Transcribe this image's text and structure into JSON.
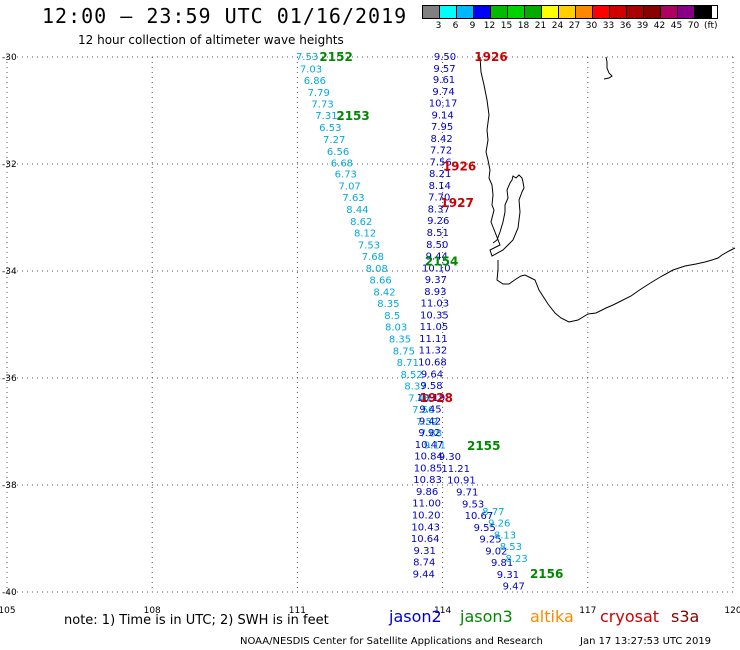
{
  "title": "12:00 – 23:59 UTC 01/16/2019",
  "subtitle": "12 hour collection of altimeter wave heights",
  "legend": {
    "colors": [
      "#808080",
      "#00ffff",
      "#00b8ff",
      "#0000ff",
      "#00bb00",
      "#00d400",
      "#00aa00",
      "#ffff00",
      "#ffd000",
      "#ff8800",
      "#ff0000",
      "#d00000",
      "#aa0000",
      "#880000",
      "#b00060",
      "#880088",
      "#000000"
    ],
    "labels": [
      "3",
      "6",
      "9",
      "12",
      "15",
      "18",
      "21",
      "24",
      "27",
      "30",
      "33",
      "36",
      "39",
      "42",
      "45",
      "70"
    ],
    "unit": "(ft)"
  },
  "map": {
    "lon_ticks": [
      "105",
      "108",
      "111",
      "114",
      "117",
      "120"
    ],
    "lat_ticks": [
      "-30",
      "-32",
      "-34",
      "-36",
      "-38",
      "-40"
    ]
  },
  "tracks": {
    "jason3_2152": {
      "color": "#00aadd",
      "points": [
        {
          "lat": -30.0,
          "lon": 111.2,
          "v": "7.53"
        },
        {
          "lat": -30.23,
          "lon": 111.28,
          "v": "7.03"
        },
        {
          "lat": -30.45,
          "lon": 111.36,
          "v": "6.86"
        },
        {
          "lat": -30.67,
          "lon": 111.44,
          "v": "7.79"
        },
        {
          "lat": -30.89,
          "lon": 111.52,
          "v": "7.73"
        },
        {
          "lat": -31.1,
          "lon": 111.6,
          "v": "7.31"
        },
        {
          "lat": -31.33,
          "lon": 111.68,
          "v": "6.53"
        },
        {
          "lat": -31.55,
          "lon": 111.76,
          "v": "7.27"
        },
        {
          "lat": -31.78,
          "lon": 111.84,
          "v": "6.56"
        },
        {
          "lat": -31.99,
          "lon": 111.92,
          "v": "6.68"
        },
        {
          "lat": -32.2,
          "lon": 112.0,
          "v": "6.73"
        },
        {
          "lat": -32.42,
          "lon": 112.08,
          "v": "7.07"
        },
        {
          "lat": -32.64,
          "lon": 112.16,
          "v": "7.63"
        },
        {
          "lat": -32.86,
          "lon": 112.24,
          "v": "8.44"
        },
        {
          "lat": -33.08,
          "lon": 112.32,
          "v": "8.62"
        },
        {
          "lat": -33.3,
          "lon": 112.4,
          "v": "8.12"
        },
        {
          "lat": -33.52,
          "lon": 112.48,
          "v": "7.53"
        },
        {
          "lat": -33.74,
          "lon": 112.56,
          "v": "7.68"
        },
        {
          "lat": -33.96,
          "lon": 112.64,
          "v": "8.08"
        },
        {
          "lat": -34.18,
          "lon": 112.72,
          "v": "8.66"
        },
        {
          "lat": -34.4,
          "lon": 112.8,
          "v": "8.42"
        },
        {
          "lat": -34.62,
          "lon": 112.88,
          "v": "8.35"
        },
        {
          "lat": -34.84,
          "lon": 112.96,
          "v": "8.5"
        },
        {
          "lat": -35.06,
          "lon": 113.04,
          "v": "8.03"
        },
        {
          "lat": -35.28,
          "lon": 113.12,
          "v": "8.35"
        },
        {
          "lat": -35.5,
          "lon": 113.2,
          "v": "8.75"
        },
        {
          "lat": -35.72,
          "lon": 113.28,
          "v": "8.71"
        },
        {
          "lat": -35.94,
          "lon": 113.36,
          "v": "8.52"
        },
        {
          "lat": -36.16,
          "lon": 113.44,
          "v": "8.37"
        },
        {
          "lat": -36.38,
          "lon": 113.52,
          "v": "7.46"
        },
        {
          "lat": -36.6,
          "lon": 113.6,
          "v": "7.56"
        },
        {
          "lat": -36.82,
          "lon": 113.68,
          "v": "7.52"
        },
        {
          "lat": -37.04,
          "lon": 113.76,
          "v": "7.88"
        },
        {
          "lat": -37.26,
          "lon": 113.84,
          "v": "9.11"
        }
      ]
    },
    "jason2_1926": {
      "color": "#0000cc",
      "points": [
        {
          "lat": -30.0,
          "lon": 114.05,
          "v": "9.50"
        },
        {
          "lat": -30.22,
          "lon": 114.04,
          "v": "9.57"
        },
        {
          "lat": -30.43,
          "lon": 114.03,
          "v": "9.61"
        },
        {
          "lat": -30.65,
          "lon": 114.02,
          "v": "9.74"
        },
        {
          "lat": -30.87,
          "lon": 114.01,
          "v": "10.17"
        },
        {
          "lat": -31.09,
          "lon": 114.0,
          "v": "9.14"
        },
        {
          "lat": -31.31,
          "lon": 113.99,
          "v": "7.95"
        },
        {
          "lat": -31.53,
          "lon": 113.98,
          "v": "8.42"
        },
        {
          "lat": -31.75,
          "lon": 113.97,
          "v": "7.72"
        },
        {
          "lat": -31.97,
          "lon": 113.96,
          "v": "7.56"
        },
        {
          "lat": -32.19,
          "lon": 113.95,
          "v": "8.21"
        },
        {
          "lat": -32.41,
          "lon": 113.94,
          "v": "8.14"
        },
        {
          "lat": -32.63,
          "lon": 113.93,
          "v": "7.70"
        },
        {
          "lat": -32.85,
          "lon": 113.92,
          "v": "8.37"
        },
        {
          "lat": -33.07,
          "lon": 113.91,
          "v": "9.26"
        },
        {
          "lat": -33.29,
          "lon": 113.9,
          "v": "8.51"
        },
        {
          "lat": -33.51,
          "lon": 113.89,
          "v": "8.50"
        },
        {
          "lat": -33.73,
          "lon": 113.88,
          "v": "9.44"
        },
        {
          "lat": -33.95,
          "lon": 113.87,
          "v": "10.10"
        },
        {
          "lat": -34.17,
          "lon": 113.86,
          "v": "9.37"
        },
        {
          "lat": -34.39,
          "lon": 113.85,
          "v": "8.93"
        },
        {
          "lat": -34.61,
          "lon": 113.84,
          "v": "11.03"
        },
        {
          "lat": -34.83,
          "lon": 113.83,
          "v": "10.35"
        },
        {
          "lat": -35.05,
          "lon": 113.82,
          "v": "11.05"
        },
        {
          "lat": -35.27,
          "lon": 113.81,
          "v": "11.11"
        },
        {
          "lat": -35.49,
          "lon": 113.8,
          "v": "11.32"
        },
        {
          "lat": -35.71,
          "lon": 113.79,
          "v": "10.68"
        },
        {
          "lat": -35.93,
          "lon": 113.78,
          "v": "9.64"
        },
        {
          "lat": -36.15,
          "lon": 113.77,
          "v": "9.58"
        },
        {
          "lat": -36.37,
          "lon": 113.76,
          "v": "10.19"
        },
        {
          "lat": -36.59,
          "lon": 113.75,
          "v": "9.45"
        },
        {
          "lat": -36.81,
          "lon": 113.74,
          "v": "9.42"
        },
        {
          "lat": -37.03,
          "lon": 113.73,
          "v": "9.92"
        },
        {
          "lat": -37.25,
          "lon": 113.72,
          "v": "10.47"
        },
        {
          "lat": -37.47,
          "lon": 113.71,
          "v": "10.84"
        },
        {
          "lat": -37.69,
          "lon": 113.7,
          "v": "10.85"
        },
        {
          "lat": -37.91,
          "lon": 113.69,
          "v": "10.83"
        },
        {
          "lat": -38.13,
          "lon": 113.68,
          "v": "9.86"
        },
        {
          "lat": -38.35,
          "lon": 113.67,
          "v": "11.00"
        },
        {
          "lat": -38.57,
          "lon": 113.66,
          "v": "10.20"
        },
        {
          "lat": -38.79,
          "lon": 113.65,
          "v": "10.43"
        },
        {
          "lat": -39.01,
          "lon": 113.64,
          "v": "10.64"
        },
        {
          "lat": -39.23,
          "lon": 113.63,
          "v": "9.31"
        },
        {
          "lat": -39.45,
          "lon": 113.62,
          "v": "8.74"
        },
        {
          "lat": -39.67,
          "lon": 113.61,
          "v": "9.44"
        }
      ]
    },
    "jason2_2155": {
      "color": "#0000cc",
      "points": [
        {
          "lat": -37.48,
          "lon": 114.15,
          "v": "9.30"
        },
        {
          "lat": -37.7,
          "lon": 114.27,
          "v": "11.21"
        },
        {
          "lat": -37.92,
          "lon": 114.39,
          "v": "10.91"
        },
        {
          "lat": -38.14,
          "lon": 114.51,
          "v": "9.71"
        },
        {
          "lat": -38.36,
          "lon": 114.63,
          "v": "9.53"
        },
        {
          "lat": -38.58,
          "lon": 114.75,
          "v": "10.67"
        },
        {
          "lat": -38.8,
          "lon": 114.87,
          "v": "9.55"
        },
        {
          "lat": -39.02,
          "lon": 114.99,
          "v": "9.25"
        },
        {
          "lat": -39.24,
          "lon": 115.11,
          "v": "9.02"
        },
        {
          "lat": -39.46,
          "lon": 115.23,
          "v": "9.81"
        },
        {
          "lat": -39.68,
          "lon": 115.35,
          "v": "9.31"
        },
        {
          "lat": -39.9,
          "lon": 115.47,
          "v": "9.47"
        }
      ]
    },
    "jason3_2155b": {
      "color": "#00aadd",
      "points": [
        {
          "lat": -38.5,
          "lon": 115.05,
          "v": "8.77"
        },
        {
          "lat": -38.72,
          "lon": 115.17,
          "v": "9.26"
        },
        {
          "lat": -38.94,
          "lon": 115.29,
          "v": "8.13"
        },
        {
          "lat": -39.16,
          "lon": 115.41,
          "v": "8.53"
        },
        {
          "lat": -39.38,
          "lon": 115.53,
          "v": "8.23"
        }
      ]
    }
  },
  "orbit_labels": [
    {
      "text": "2152",
      "lat": -30.0,
      "lon": 111.8,
      "color": "#008800"
    },
    {
      "text": "1926",
      "lat": -30.0,
      "lon": 115.0,
      "color": "#cc0000"
    },
    {
      "text": "2153",
      "lat": -31.1,
      "lon": 112.15,
      "color": "#008800"
    },
    {
      "text": "1926",
      "lat": -32.05,
      "lon": 114.35,
      "color": "#cc0000"
    },
    {
      "text": "1927",
      "lat": -32.73,
      "lon": 114.3,
      "color": "#cc0000"
    },
    {
      "text": "2154",
      "lat": -33.82,
      "lon": 113.98,
      "color": "#008800"
    },
    {
      "text": "1928",
      "lat": -36.37,
      "lon": 113.87,
      "color": "#cc0000"
    },
    {
      "text": "2155",
      "lat": -37.27,
      "lon": 114.85,
      "color": "#008800"
    },
    {
      "text": "2156",
      "lat": -39.66,
      "lon": 116.15,
      "color": "#008800"
    }
  ],
  "footer": {
    "note": "note: 1) Time is in UTC; 2) SWH is in feet",
    "satellites": [
      {
        "label": "jason2",
        "color": "#0000cc"
      },
      {
        "label": "jason3",
        "color": "#008800"
      },
      {
        "label": "altika",
        "color": "#ff8800"
      },
      {
        "label": "cryosat",
        "color": "#cc0000"
      },
      {
        "label": "s3a",
        "color": "#880000"
      }
    ],
    "credit": "NOAA/NESDIS Center for Satellite Applications and Research",
    "timestamp": "Jan 17 13:27:53 UTC 2019"
  }
}
